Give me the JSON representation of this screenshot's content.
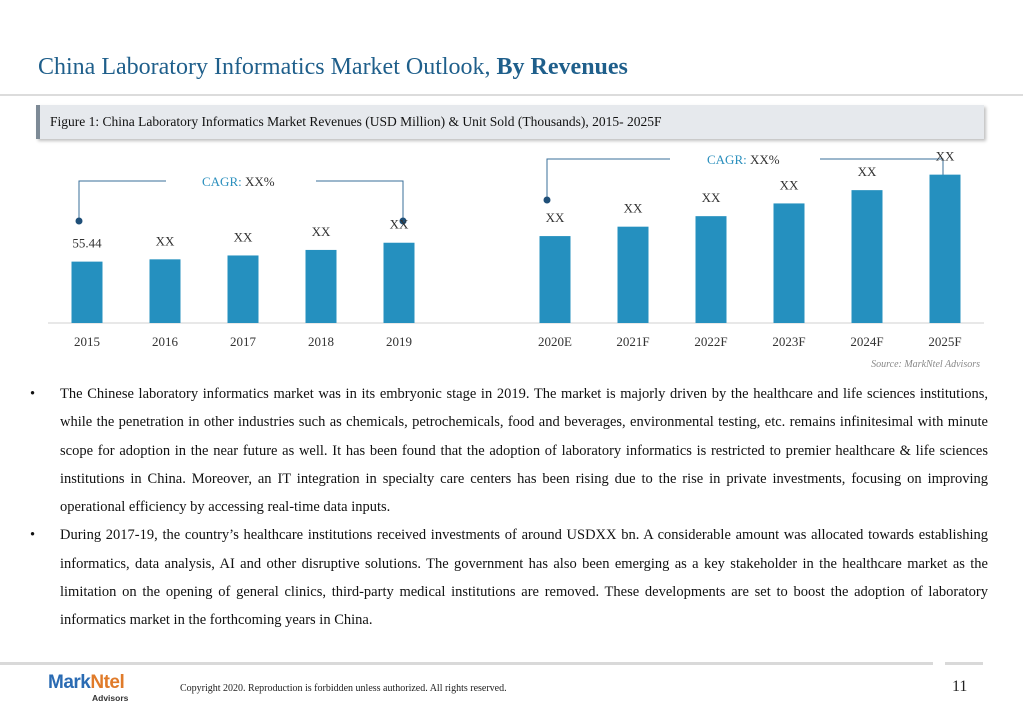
{
  "title": {
    "main": "China Laboratory Informatics Market Outlook, ",
    "bold": "By Revenues"
  },
  "figure_caption": "Figure 1: China Laboratory Informatics Market Revenues (USD Million) & Unit Sold (Thousands), 2015- 2025F",
  "cagr_left": {
    "label": "CAGR:",
    "value": "XX%"
  },
  "cagr_right": {
    "label": "CAGR:",
    "value": "XX%"
  },
  "source": "Source: MarkNtel Advisors",
  "chart_data": {
    "type": "bar",
    "categories": [
      "2015",
      "2016",
      "2017",
      "2018",
      "2019",
      "2020E",
      "2021F",
      "2022F",
      "2023F",
      "2024F",
      "2025F"
    ],
    "values": [
      55.44,
      57.5,
      61.0,
      66.0,
      72.5,
      78.5,
      87.0,
      96.5,
      108.0,
      120.0,
      134.0
    ],
    "data_labels": [
      "55.44",
      "XX",
      "XX",
      "XX",
      "XX",
      "XX",
      "XX",
      "XX",
      "XX",
      "XX",
      "XX"
    ],
    "ylim": [
      0,
      140
    ],
    "bar_color": "#2590bf",
    "title": "",
    "xlabel": "",
    "ylabel": ""
  },
  "bullets": [
    "The Chinese laboratory informatics market was in its embryonic stage in 2019. The market is majorly driven by the healthcare and life sciences institutions, while the penetration in other industries such as chemicals, petrochemicals, food and beverages, environmental testing, etc. remains infinitesimal with minute scope for adoption in the near future as well. It has been found that the adoption of laboratory informatics is restricted to premier healthcare & life sciences institutions in China. Moreover, an IT integration in specialty care centers has been rising due to the rise in private investments, focusing on improving operational efficiency by accessing real-time data inputs.",
    "During 2017-19, the country’s healthcare institutions received investments of around USDXX bn. A considerable amount was allocated towards establishing informatics, data analysis, AI and other disruptive solutions.  The government has also been emerging as a key stakeholder in the healthcare market as the limitation on the opening of general clinics, third-party medical institutions are removed. These developments are set to boost the adoption of laboratory informatics market in the forthcoming years in China."
  ],
  "footer": {
    "logo_mark": "Mark",
    "logo_accent": "Ntel",
    "logo_sub": "Advisors",
    "copyright": "Copyright 2020. Reproduction is forbidden unless authorized. All rights reserved.",
    "page_number": "11"
  },
  "colors": {
    "title": "#1f5f8b",
    "accent": "#2a8fbd",
    "bar": "#2590bf"
  }
}
